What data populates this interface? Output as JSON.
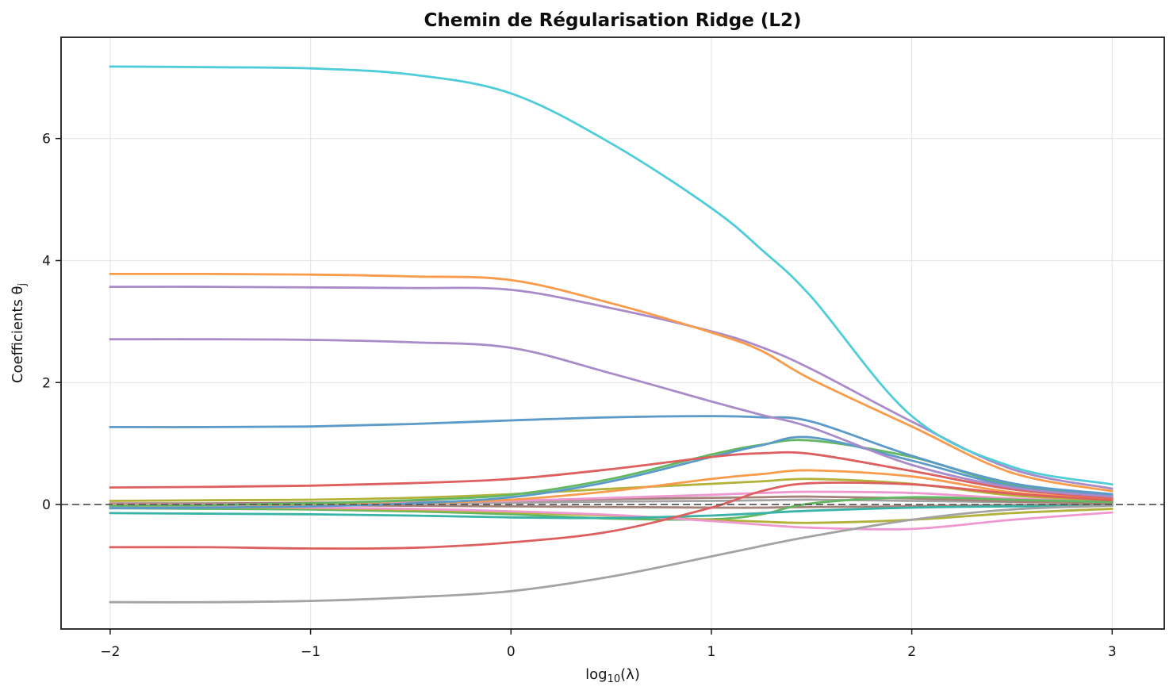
{
  "chart_data": {
    "type": "line",
    "title": "Chemin de Régularisation Ridge (L2)",
    "xlabel": "log10(λ)",
    "xlabel_parts": {
      "pre": "log",
      "sub": "10",
      "post": "(λ)"
    },
    "ylabel": "Coefficients θj",
    "ylabel_parts": {
      "main": "Coefficients θ",
      "sub": "j"
    },
    "xlim": [
      -2.245,
      3.26
    ],
    "ylim": [
      -2.04,
      7.66
    ],
    "x_ticks": [
      -2,
      -1,
      0,
      1,
      2,
      3
    ],
    "x_tick_labels": [
      "−2",
      "−1",
      "0",
      "1",
      "2",
      "3"
    ],
    "y_ticks": [
      0,
      2,
      4,
      6
    ],
    "y_tick_labels": [
      "0",
      "2",
      "4",
      "6"
    ],
    "grid": true,
    "legend": "none",
    "zero_line": {
      "y": 0,
      "style": "dashed",
      "color": "#595959"
    },
    "x": [
      -2,
      -1.5,
      -1,
      -0.5,
      0,
      0.5,
      1,
      1.25,
      1.5,
      2,
      2.5,
      3
    ],
    "series": [
      {
        "name": "gray-2",
        "color": "#a3a3a3",
        "values": [
          0.01,
          0.01,
          0.01,
          0.02,
          0.03,
          0.05,
          0.06,
          0.07,
          0.08,
          0.06,
          0.04,
          0.03
        ]
      },
      {
        "name": "brown-2",
        "color": "#a3837a",
        "values": [
          -0.01,
          -0.01,
          -0.01,
          -0.02,
          -0.03,
          -0.04,
          -0.05,
          -0.05,
          -0.04,
          -0.03,
          -0.01,
          0.0
        ]
      },
      {
        "name": "brown-1",
        "color": "#a3837a",
        "values": [
          0.02,
          0.02,
          0.03,
          0.04,
          0.06,
          0.09,
          0.11,
          0.12,
          0.13,
          0.1,
          0.05,
          0.03
        ]
      },
      {
        "name": "pink-2",
        "color": "#ee97d0",
        "values": [
          0.0,
          0.0,
          0.01,
          0.03,
          0.06,
          0.11,
          0.16,
          0.19,
          0.21,
          0.19,
          0.1,
          0.05
        ]
      },
      {
        "name": "olive-1",
        "color": "#b2b13a",
        "values": [
          0.06,
          0.07,
          0.08,
          0.11,
          0.17,
          0.26,
          0.34,
          0.38,
          0.42,
          0.34,
          0.15,
          0.07
        ]
      },
      {
        "name": "orange-2",
        "color": "#f89b4b",
        "values": [
          -0.01,
          -0.01,
          0.0,
          0.02,
          0.08,
          0.22,
          0.42,
          0.5,
          0.56,
          0.46,
          0.2,
          0.09
        ]
      },
      {
        "name": "green-1",
        "color": "#62b862",
        "values": [
          -0.06,
          -0.07,
          -0.08,
          -0.11,
          -0.16,
          -0.23,
          -0.24,
          -0.16,
          0.02,
          0.12,
          0.08,
          0.04
        ]
      },
      {
        "name": "olive-2",
        "color": "#b2b13a",
        "values": [
          -0.04,
          -0.05,
          -0.06,
          -0.09,
          -0.13,
          -0.18,
          -0.25,
          -0.28,
          -0.3,
          -0.25,
          -0.14,
          -0.07
        ]
      },
      {
        "name": "pink-1",
        "color": "#ee97d0",
        "values": [
          -0.03,
          -0.03,
          -0.05,
          -0.07,
          -0.11,
          -0.17,
          -0.27,
          -0.33,
          -0.38,
          -0.4,
          -0.25,
          -0.13
        ]
      },
      {
        "name": "teal-2",
        "color": "#39b3a8",
        "values": [
          -0.14,
          -0.15,
          -0.16,
          -0.18,
          -0.21,
          -0.22,
          -0.18,
          -0.14,
          -0.1,
          -0.05,
          -0.03,
          -0.02
        ]
      },
      {
        "name": "gray-1",
        "color": "#a3a3a3",
        "values": [
          -1.6,
          -1.6,
          -1.58,
          -1.52,
          -1.42,
          -1.18,
          -0.85,
          -0.68,
          -0.52,
          -0.25,
          -0.08,
          -0.02
        ]
      },
      {
        "name": "red-2",
        "color": "#dd5f5f",
        "values": [
          -0.7,
          -0.7,
          -0.72,
          -0.71,
          -0.62,
          -0.44,
          -0.05,
          0.22,
          0.35,
          0.33,
          0.18,
          0.07
        ]
      },
      {
        "name": "green-2",
        "color": "#62b862",
        "values": [
          -0.02,
          -0.01,
          0.02,
          0.07,
          0.16,
          0.42,
          0.82,
          0.98,
          1.05,
          0.78,
          0.32,
          0.15
        ]
      },
      {
        "name": "blue-2",
        "color": "#5b9ac9",
        "values": [
          -0.06,
          -0.05,
          -0.03,
          0.02,
          0.12,
          0.38,
          0.78,
          0.97,
          1.1,
          0.72,
          0.3,
          0.14
        ]
      },
      {
        "name": "red-1",
        "color": "#dd5f5f",
        "values": [
          0.28,
          0.29,
          0.31,
          0.35,
          0.42,
          0.58,
          0.78,
          0.84,
          0.83,
          0.55,
          0.25,
          0.11
        ]
      },
      {
        "name": "blue-1",
        "color": "#5b9ac9",
        "values": [
          1.27,
          1.27,
          1.28,
          1.32,
          1.38,
          1.43,
          1.45,
          1.43,
          1.36,
          0.8,
          0.35,
          0.17
        ]
      },
      {
        "name": "purple-2",
        "color": "#a98bc9",
        "values": [
          2.71,
          2.71,
          2.7,
          2.66,
          2.57,
          2.15,
          1.69,
          1.47,
          1.26,
          0.65,
          0.28,
          0.13
        ]
      },
      {
        "name": "purple-1",
        "color": "#a98bc9",
        "values": [
          3.57,
          3.57,
          3.56,
          3.55,
          3.52,
          3.22,
          2.84,
          2.58,
          2.22,
          1.36,
          0.58,
          0.26
        ]
      },
      {
        "name": "orange-1",
        "color": "#f89b4b",
        "values": [
          3.78,
          3.78,
          3.77,
          3.74,
          3.68,
          3.3,
          2.82,
          2.52,
          2.05,
          1.28,
          0.52,
          0.22
        ]
      },
      {
        "name": "cyan-1",
        "color": "#4ecdd8",
        "values": [
          7.18,
          7.17,
          7.15,
          7.05,
          6.74,
          5.92,
          4.86,
          4.18,
          3.4,
          1.45,
          0.62,
          0.33
        ]
      }
    ]
  },
  "style": {
    "background": "#ffffff",
    "grid_color": "#e7e7e7",
    "spine_color": "#1c1c1c",
    "tick_color": "#1c1c1c",
    "line_width": 2.8
  }
}
